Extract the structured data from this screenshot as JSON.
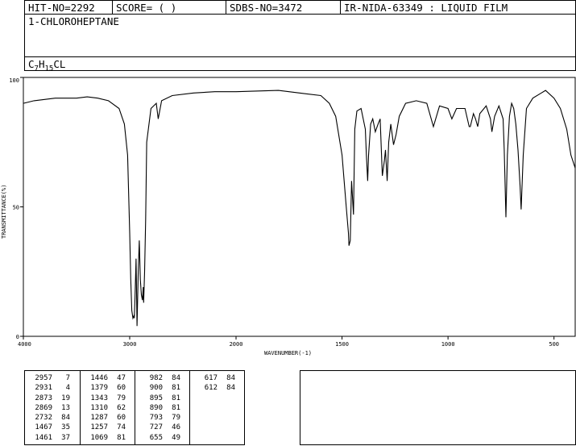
{
  "header": {
    "hit_no": "HIT-NO=2292",
    "score": "SCORE=  (   )",
    "sdbs_no": "SDBS-NO=3472",
    "ir_id": "IR-NIDA-63349 : LIQUID FILM",
    "compound": "1-CHLOROHEPTANE",
    "formula_c": "C",
    "formula_7": "7",
    "formula_h": "H",
    "formula_15": "15",
    "formula_cl": "CL"
  },
  "chart_data": {
    "type": "line",
    "title": "",
    "xlabel": "WAVENUMBER(-1)",
    "ylabel": "TRANSMITTANCE(%)",
    "xlim": [
      4000,
      400
    ],
    "ylim": [
      0,
      100
    ],
    "x_ticks": [
      "4000",
      "3000",
      "2000",
      "1500",
      "1000",
      "500"
    ],
    "y_ticks": [
      "100",
      "50",
      "0"
    ],
    "grid": false,
    "series": [
      {
        "x": [
          4000,
          3900,
          3800,
          3700,
          3600,
          3500,
          3400,
          3300,
          3200,
          3100,
          3050,
          3020,
          3000,
          2990,
          2980,
          2970,
          2960,
          2957,
          2950,
          2940,
          2931,
          2920,
          2910,
          2900,
          2890,
          2880,
          2873,
          2869,
          2860,
          2850,
          2840,
          2800,
          2750,
          2732,
          2700,
          2600,
          2400,
          2200,
          2000,
          1800,
          1700,
          1600,
          1560,
          1530,
          1500,
          1480,
          1470,
          1467,
          1461,
          1455,
          1446,
          1440,
          1430,
          1410,
          1390,
          1385,
          1379,
          1375,
          1365,
          1355,
          1343,
          1330,
          1320,
          1310,
          1300,
          1295,
          1287,
          1280,
          1270,
          1257,
          1245,
          1230,
          1200,
          1150,
          1100,
          1069,
          1040,
          1000,
          982,
          960,
          920,
          900,
          895,
          880,
          870,
          860,
          850,
          820,
          800,
          793,
          780,
          760,
          740,
          735,
          727,
          720,
          710,
          700,
          690,
          680,
          670,
          660,
          655,
          645,
          630,
          600,
          560,
          540,
          500,
          470,
          440,
          420,
          400
        ],
        "y": [
          90,
          91,
          91.5,
          92,
          92,
          92,
          92.5,
          92,
          91,
          88,
          82,
          70,
          40,
          22,
          10,
          7,
          8,
          7,
          15,
          30,
          4,
          25,
          37,
          22,
          16,
          14,
          19,
          13,
          25,
          45,
          75,
          88,
          90,
          84,
          91,
          93,
          94,
          94.5,
          94.5,
          95,
          94,
          93,
          90,
          85,
          70,
          50,
          40,
          35,
          37,
          60,
          47,
          80,
          87,
          88,
          80,
          70,
          60,
          70,
          82,
          84,
          79,
          82,
          84,
          62,
          68,
          72,
          60,
          75,
          82,
          74,
          78,
          85,
          90,
          91,
          90,
          81,
          89,
          88,
          84,
          88,
          88,
          81,
          81,
          86,
          84,
          81,
          86,
          89,
          84,
          79,
          85,
          89,
          84,
          72,
          46,
          70,
          85,
          90,
          88,
          82,
          72,
          58,
          49,
          70,
          88,
          92,
          94,
          95,
          92,
          88,
          80,
          70,
          65
        ]
      }
    ]
  },
  "peaks": [
    [
      [
        "2957",
        "7"
      ],
      [
        "2931",
        "4"
      ],
      [
        "2873",
        "19"
      ],
      [
        "2869",
        "13"
      ],
      [
        "2732",
        "84"
      ],
      [
        "1467",
        "35"
      ],
      [
        "1461",
        "37"
      ]
    ],
    [
      [
        "1446",
        "47"
      ],
      [
        "1379",
        "60"
      ],
      [
        "1343",
        "79"
      ],
      [
        "1310",
        "62"
      ],
      [
        "1287",
        "60"
      ],
      [
        "1257",
        "74"
      ],
      [
        "1069",
        "81"
      ]
    ],
    [
      [
        "982",
        "84"
      ],
      [
        "900",
        "81"
      ],
      [
        "895",
        "81"
      ],
      [
        "890",
        "81"
      ],
      [
        "793",
        "79"
      ],
      [
        "727",
        "46"
      ],
      [
        "655",
        "49"
      ]
    ],
    [
      [
        "617",
        "84"
      ],
      [
        "612",
        "84"
      ]
    ]
  ]
}
